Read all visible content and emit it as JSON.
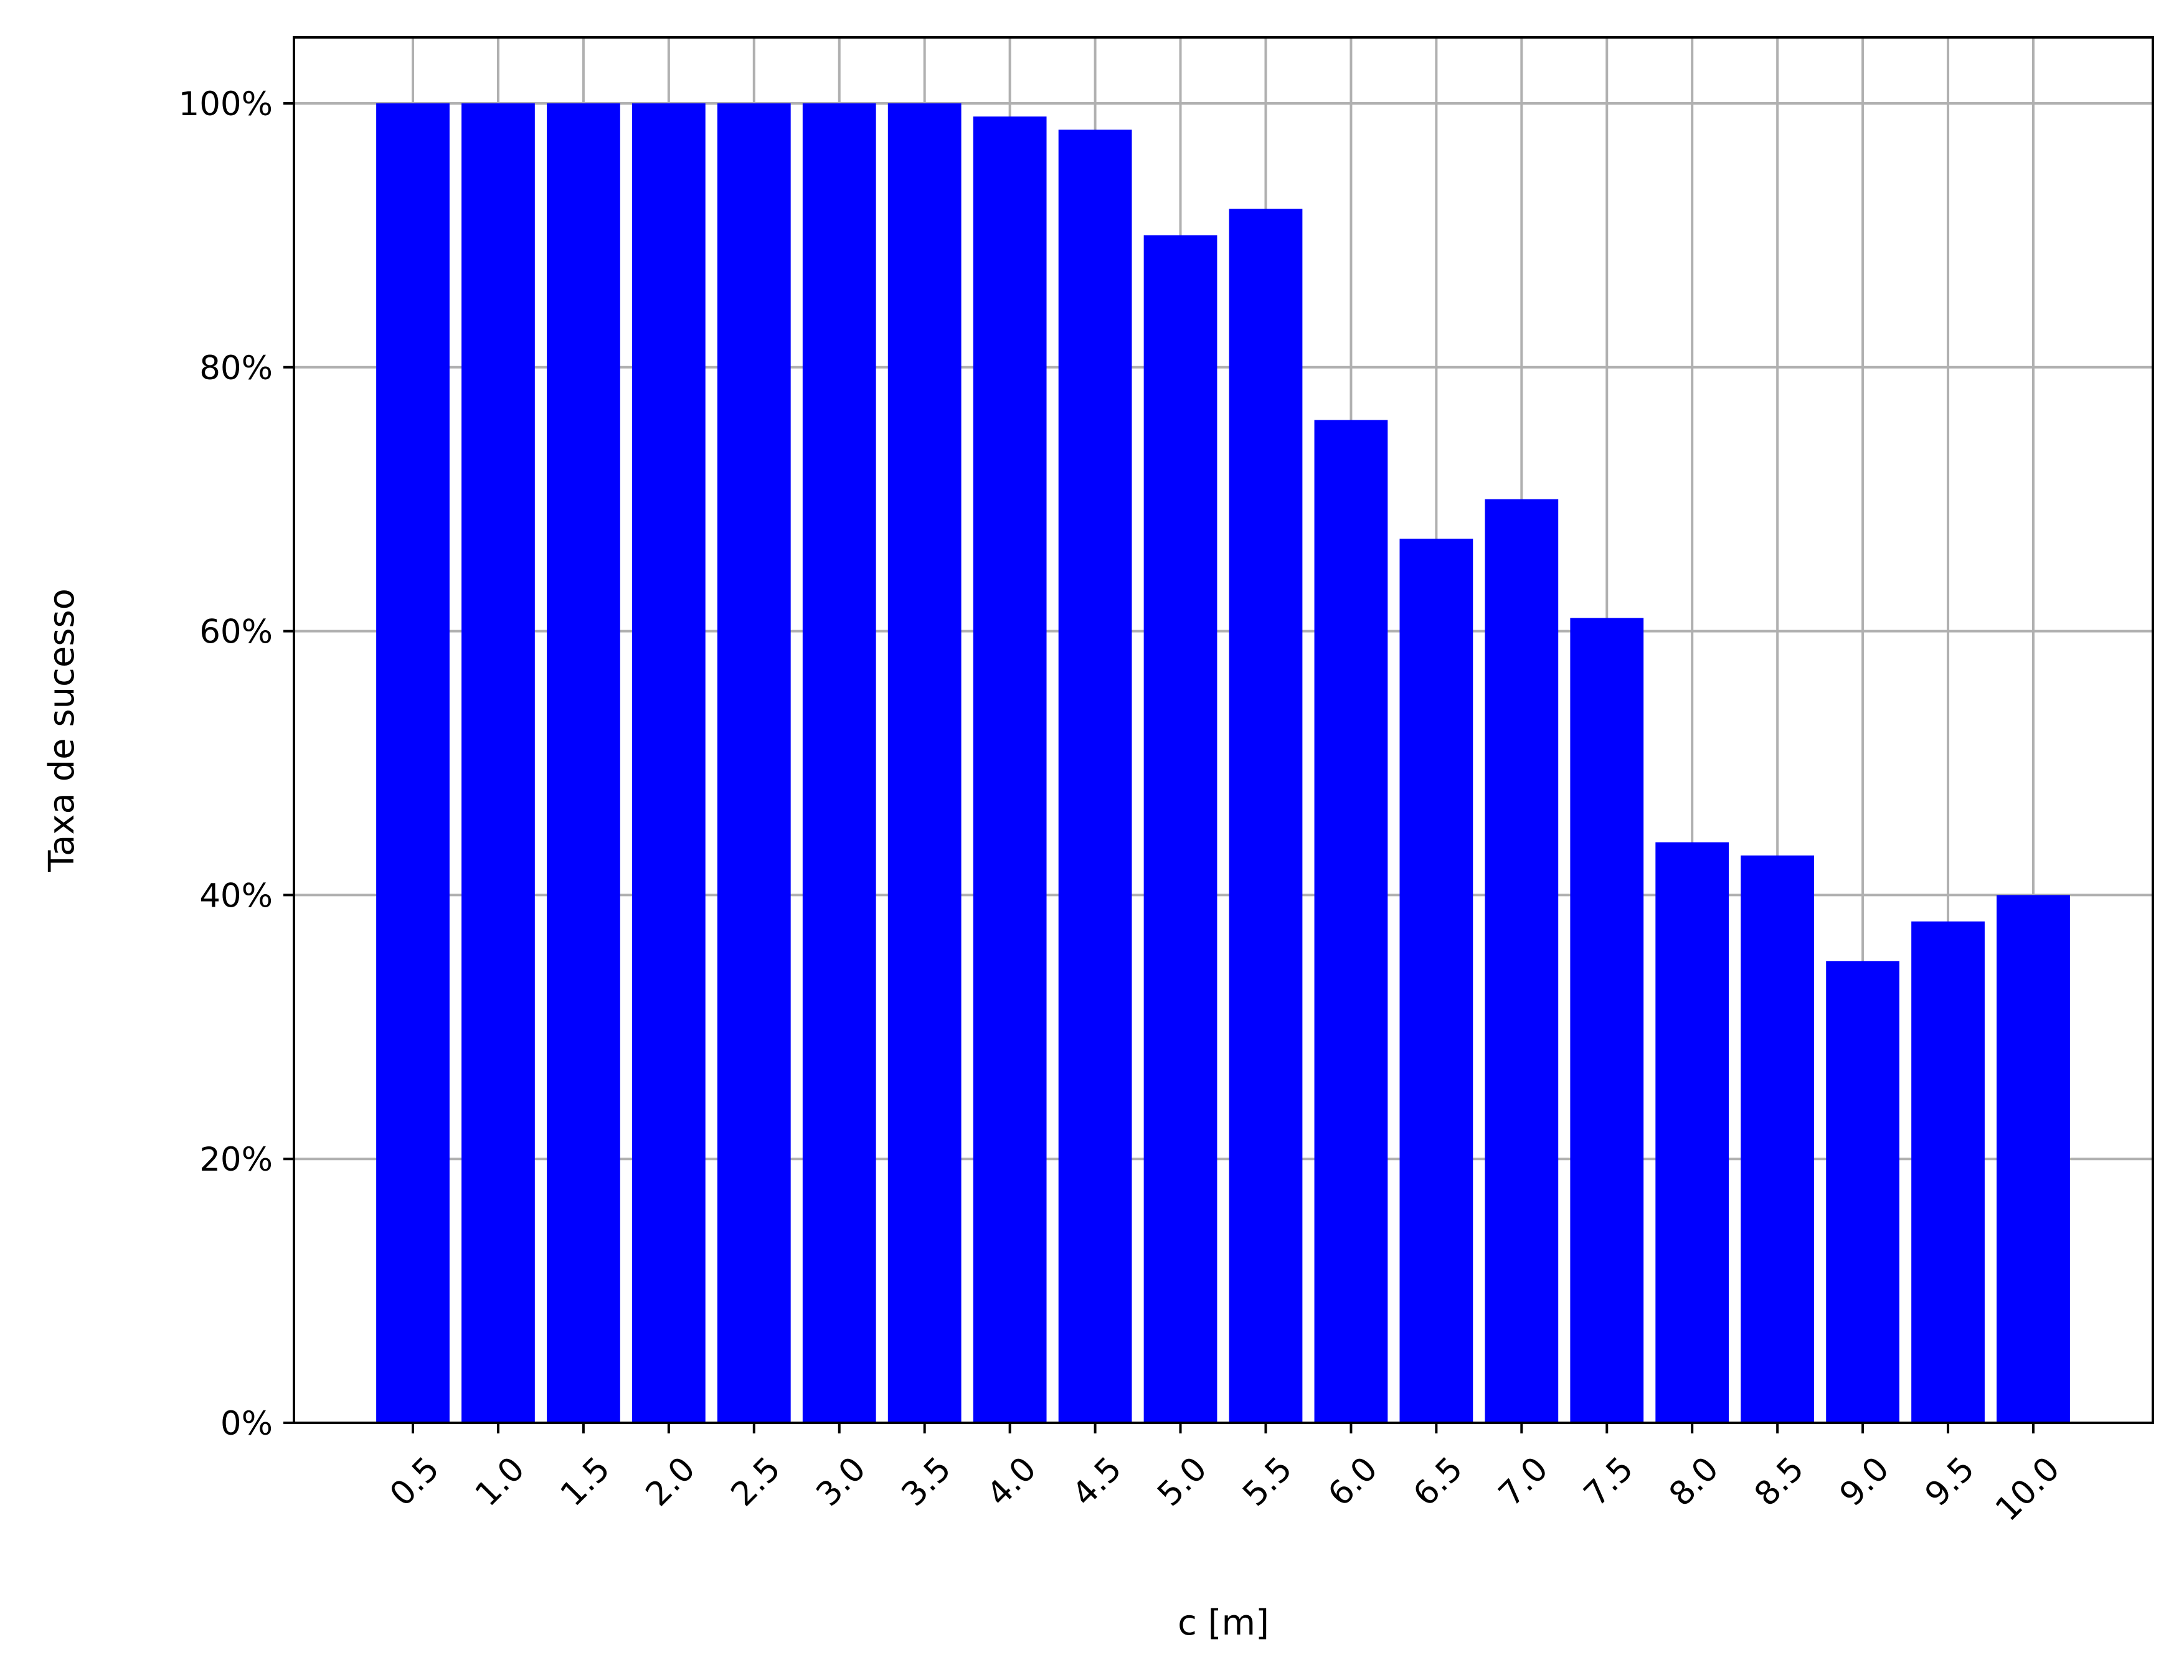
{
  "chart_data": {
    "type": "bar",
    "title": "",
    "xlabel": "c [m]",
    "ylabel": "Taxa de sucesso",
    "categories": [
      "0.5",
      "1.0",
      "1.5",
      "2.0",
      "2.5",
      "3.0",
      "3.5",
      "4.0",
      "4.5",
      "5.0",
      "5.5",
      "6.0",
      "6.5",
      "7.0",
      "7.5",
      "8.0",
      "8.5",
      "9.0",
      "9.5",
      "10.0"
    ],
    "values": [
      100,
      100,
      100,
      100,
      100,
      100,
      100,
      99,
      98,
      90,
      92,
      76,
      67,
      70,
      61,
      44,
      43,
      35,
      38,
      40
    ],
    "ylim": [
      0,
      105
    ],
    "yticks": [
      0,
      20,
      40,
      60,
      80,
      100
    ],
    "ytick_labels": [
      "0%",
      "20%",
      "40%",
      "60%",
      "80%",
      "100%"
    ],
    "bar_color": "#0000ff",
    "grid": true,
    "grid_color": "#b0b0b0",
    "legend": "none"
  }
}
